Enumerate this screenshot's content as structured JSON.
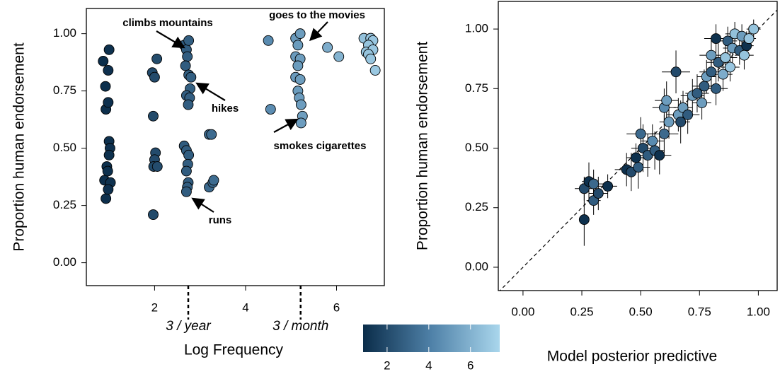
{
  "chart_data": [
    {
      "type": "scatter",
      "x_label": "Log Frequency",
      "y_label": "Proportion human endorsement",
      "xlim": [
        0.5,
        7.05
      ],
      "ylim": [
        -0.1,
        1.11
      ],
      "xticks": [
        2,
        4,
        6
      ],
      "yticks": [
        {
          "value": 0,
          "label": "0.00"
        },
        {
          "value": 0.25,
          "label": "0.25"
        },
        {
          "value": 0.5,
          "label": "0.50"
        },
        {
          "value": 0.75,
          "label": "0.75"
        },
        {
          "value": 1,
          "label": "1.00"
        }
      ],
      "x": [
        0.87,
        0.92,
        0.93,
        0.9,
        0.93,
        0.95,
        0.97,
        1.0,
        0.98,
        0.98,
        1.0,
        1.02,
        1.0,
        1.03,
        0.98,
        1.95,
        2.0,
        2.05,
        1.97,
        2.02,
        2.0,
        1.98,
        2.06,
        1.97,
        2.65,
        2.7,
        2.75,
        2.72,
        2.68,
        2.75,
        2.8,
        2.78,
        2.7,
        2.77,
        2.74,
        2.65,
        2.7,
        2.75,
        2.73,
        2.7,
        2.74,
        2.72,
        2.7,
        3.2,
        3.25,
        3.2,
        3.28,
        3.3,
        4.5,
        4.55,
        5.1,
        5.2,
        5.15,
        5.1,
        5.2,
        5.15,
        5.1,
        5.2,
        5.15,
        5.18,
        5.22,
        5.25,
        5.22,
        5.8,
        6.05,
        6.6,
        6.75,
        6.8,
        6.7,
        6.65,
        6.8,
        6.7,
        6.75,
        6.85
      ],
      "y": [
        0.88,
        0.77,
        0.67,
        0.36,
        0.28,
        0.42,
        0.4,
        0.93,
        0.84,
        0.7,
        0.53,
        0.5,
        0.47,
        0.35,
        0.32,
        0.83,
        0.81,
        0.89,
        0.64,
        0.48,
        0.45,
        0.42,
        0.42,
        0.21,
        0.95,
        0.93,
        0.97,
        0.9,
        0.86,
        0.82,
        0.81,
        0.76,
        0.73,
        0.72,
        0.69,
        0.51,
        0.49,
        0.47,
        0.43,
        0.4,
        0.35,
        0.33,
        0.31,
        0.56,
        0.56,
        0.33,
        0.35,
        0.36,
        0.97,
        0.67,
        0.98,
        1.0,
        0.95,
        0.9,
        0.89,
        0.86,
        0.81,
        0.8,
        0.75,
        0.72,
        0.69,
        0.64,
        0.61,
        0.94,
        0.9,
        0.98,
        0.98,
        0.97,
        0.95,
        0.92,
        0.93,
        0.91,
        0.89,
        0.84
      ],
      "colormap": [
        "#0b2d4a",
        "#4f81a8",
        "#a9d6ec"
      ],
      "colorbar": {
        "lim": [
          0.85,
          7.4
        ],
        "ticks": [
          2,
          4,
          6
        ]
      },
      "reference_lines": [
        {
          "x": 2.74,
          "label": "3 / year"
        },
        {
          "x": 5.21,
          "label": "3 / month"
        }
      ],
      "annotations": [
        "climbs mountains",
        "goes to the movies",
        "hikes",
        "smokes cigarettes",
        "runs"
      ]
    },
    {
      "type": "scatter-error",
      "x_label": "Model posterior predictive",
      "y_label": "Proportion human endorsement",
      "xlim": [
        -0.105,
        1.08
      ],
      "ylim": [
        -0.098,
        1.116
      ],
      "xticks": [
        {
          "value": 0,
          "label": "0.00"
        },
        {
          "value": 0.25,
          "label": "0.25"
        },
        {
          "value": 0.5,
          "label": "0.50"
        },
        {
          "value": 0.75,
          "label": "0.75"
        },
        {
          "value": 1,
          "label": "1.00"
        }
      ],
      "yticks": [
        {
          "value": 0,
          "label": "0.00"
        },
        {
          "value": 0.25,
          "label": "0.25"
        },
        {
          "value": 0.5,
          "label": "0.50"
        },
        {
          "value": 0.75,
          "label": "0.75"
        },
        {
          "value": 1,
          "label": "1.00"
        }
      ],
      "x": [
        0.26,
        0.26,
        0.28,
        0.3,
        0.32,
        0.3,
        0.36,
        0.44,
        0.46,
        0.49,
        0.48,
        0.51,
        0.5,
        0.53,
        0.56,
        0.55,
        0.58,
        0.6,
        0.6,
        0.61,
        0.62,
        0.65,
        0.66,
        0.67,
        0.68,
        0.7,
        0.72,
        0.74,
        0.76,
        0.77,
        0.78,
        0.8,
        0.8,
        0.82,
        0.83,
        0.82,
        0.85,
        0.86,
        0.87,
        0.88,
        0.89,
        0.9,
        0.92,
        0.93,
        0.94,
        0.95,
        0.96,
        0.98
      ],
      "y": [
        0.2,
        0.33,
        0.36,
        0.28,
        0.31,
        0.35,
        0.34,
        0.41,
        0.4,
        0.42,
        0.46,
        0.5,
        0.56,
        0.47,
        0.49,
        0.53,
        0.47,
        0.56,
        0.67,
        0.7,
        0.61,
        0.82,
        0.64,
        0.61,
        0.67,
        0.64,
        0.72,
        0.73,
        0.69,
        0.76,
        0.8,
        0.82,
        0.89,
        0.75,
        0.86,
        0.96,
        0.81,
        0.88,
        0.95,
        0.84,
        0.92,
        0.98,
        0.91,
        0.97,
        0.89,
        0.93,
        0.96,
        1.0
      ],
      "c": [
        1.0,
        2.0,
        1.0,
        2.7,
        2.0,
        3.2,
        1.0,
        1.0,
        2.0,
        2.7,
        1.0,
        2.0,
        3.2,
        2.7,
        2.7,
        4.5,
        1.0,
        3.2,
        4.5,
        5.2,
        5.2,
        2.0,
        5.2,
        2.0,
        5.2,
        2.7,
        5.2,
        2.7,
        5.2,
        2.7,
        5.2,
        2.7,
        5.2,
        2.7,
        2.7,
        1.0,
        5.8,
        6.7,
        2.7,
        6.8,
        5.2,
        6.6,
        2.7,
        5.2,
        6.7,
        1.0,
        6.8,
        6.7
      ],
      "xerr": [
        0.02,
        0.04,
        0.03,
        0.03,
        0.04,
        0.05,
        0.04,
        0.05,
        0.04,
        0.05,
        0.04,
        0.05,
        0.06,
        0.05,
        0.04,
        0.05,
        0.05,
        0.06,
        0.05,
        0.05,
        0.04,
        0.06,
        0.05,
        0.04,
        0.04,
        0.05,
        0.05,
        0.05,
        0.04,
        0.05,
        0.04,
        0.05,
        0.05,
        0.05,
        0.05,
        0.05,
        0.04,
        0.05,
        0.04,
        0.04,
        0.04,
        0.04,
        0.04,
        0.04,
        0.04,
        0.03,
        0.03,
        0.03
      ],
      "yerr": [
        0.11,
        0.05,
        0.08,
        0.06,
        0.07,
        0.06,
        0.05,
        0.07,
        0.08,
        0.09,
        0.06,
        0.1,
        0.07,
        0.09,
        0.08,
        0.07,
        0.08,
        0.08,
        0.08,
        0.08,
        0.07,
        0.09,
        0.07,
        0.09,
        0.07,
        0.08,
        0.07,
        0.08,
        0.07,
        0.07,
        0.07,
        0.08,
        0.07,
        0.07,
        0.08,
        0.06,
        0.07,
        0.07,
        0.06,
        0.06,
        0.06,
        0.05,
        0.06,
        0.05,
        0.06,
        0.06,
        0.05,
        0.04
      ]
    }
  ]
}
